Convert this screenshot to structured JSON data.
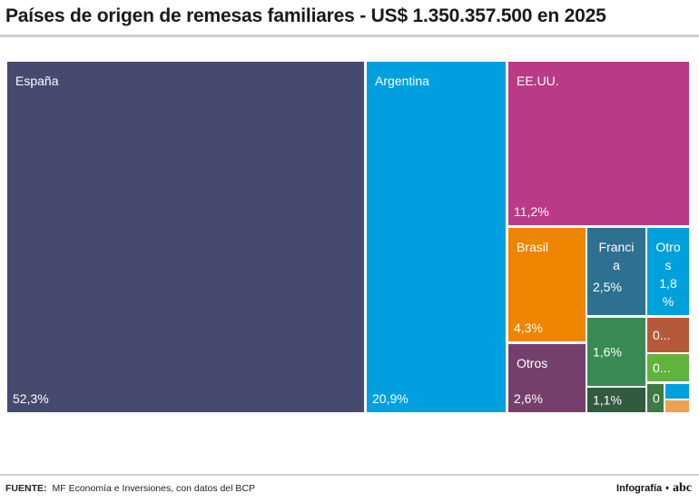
{
  "title": "Países de origen de remesas familiares - US$ 1.350.357.500 en 2025",
  "chart_data": {
    "type": "treemap",
    "title": "Países de origen de remesas familiares - US$ 1.350.357.500 en 2025",
    "total": "US$ 1.350.357.500",
    "year": 2025,
    "items": [
      {
        "name": "España",
        "value": 52.3,
        "label": "España",
        "value_label": "52,3%",
        "color": "#464a6e"
      },
      {
        "name": "Argentina",
        "value": 20.9,
        "label": "Argentina",
        "value_label": "20,9%",
        "color": "#009fdf"
      },
      {
        "name": "EE.UU.",
        "value": 11.2,
        "label": "EE.UU.",
        "value_label": "11,2%",
        "color": "#b93a87"
      },
      {
        "name": "Brasil",
        "value": 4.3,
        "label": "Brasil",
        "value_label": "4,3%",
        "color": "#ee8500"
      },
      {
        "name": "Otros",
        "value": 2.6,
        "label": "Otros",
        "value_label": "2,6%",
        "color": "#74406b"
      },
      {
        "name": "Francia",
        "value": 2.5,
        "label": "Franci a",
        "value_label": "2,5%",
        "color": "#2e7090"
      },
      {
        "name": "Otros (2)",
        "value": 1.8,
        "label": "Otro s",
        "value_label": "1,8 %",
        "color": "#00a0dc"
      },
      {
        "name": "(sin etiqueta) 1,6%",
        "value": 1.6,
        "label": "",
        "value_label": "1,6%",
        "color": "#3a8a55"
      },
      {
        "name": "(sin etiqueta) 1,1%",
        "value": 1.1,
        "label": "",
        "value_label": "1,1%",
        "color": "#315a3f"
      },
      {
        "name": "(pequeño) marrón",
        "value": 0.7,
        "label": "",
        "value_label": "0...",
        "color": "#b5593a"
      },
      {
        "name": "(pequeño) verde claro",
        "value": 0.6,
        "label": "",
        "value_label": "0...",
        "color": "#62b23e"
      },
      {
        "name": "(pequeño) verde oscuro",
        "value": 0.3,
        "label": "",
        "value_label": "0",
        "color": "#3d7a45"
      },
      {
        "name": "(pequeño) azul",
        "value": 0.15,
        "label": "",
        "value_label": "",
        "color": "#009fdf"
      },
      {
        "name": "(pequeño) naranja",
        "value": 0.1,
        "label": "",
        "value_label": "",
        "color": "#f0a050"
      }
    ]
  },
  "footer": {
    "source_label": "FUENTE:",
    "source_text": "MF Economía e Inversiones, con datos del BCP",
    "credit": "Infografía",
    "dot": "•",
    "brand": "abc"
  }
}
